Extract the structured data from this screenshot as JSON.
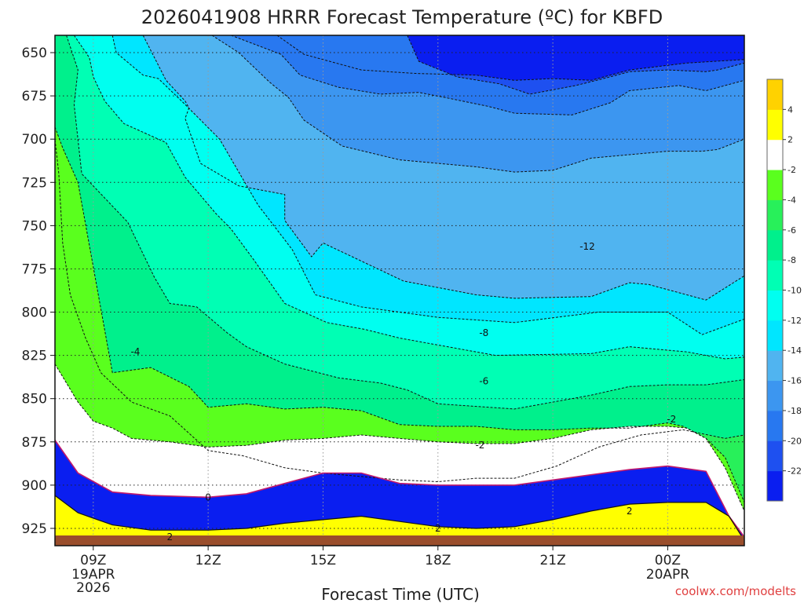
{
  "chart_data": {
    "type": "heatmap",
    "title": "2026041908 HRRR Forecast Temperature (ºC) for KBFD",
    "xlabel": "Forecast Time (UTC)",
    "ylabel": "",
    "x_ticks": [
      {
        "label": "09Z",
        "sub": [
          "19APR",
          "2026"
        ],
        "hour": 9
      },
      {
        "label": "12Z",
        "sub": [],
        "hour": 12
      },
      {
        "label": "15Z",
        "sub": [],
        "hour": 15
      },
      {
        "label": "18Z",
        "sub": [],
        "hour": 18
      },
      {
        "label": "21Z",
        "sub": [],
        "hour": 21
      },
      {
        "label": "00Z",
        "sub": [
          "20APR"
        ],
        "hour": 24
      }
    ],
    "xlim_hours": [
      8,
      26
    ],
    "y_ticks": [
      650,
      675,
      700,
      725,
      750,
      775,
      800,
      825,
      850,
      875,
      900,
      925
    ],
    "ylim_hpa": [
      640,
      935
    ],
    "y_axis_inverted": true,
    "grid": true,
    "colorbar": {
      "levels": [
        -24,
        -22,
        -20,
        -18,
        -16,
        -14,
        -12,
        -10,
        -8,
        -6,
        -4,
        -2,
        2,
        4,
        6
      ],
      "tick_labels": [
        "-22",
        "-20",
        "-18",
        "-16",
        "-14",
        "-12",
        "-10",
        "-8",
        "-6",
        "-4",
        "-2",
        "2",
        "4"
      ],
      "colors": [
        "#0a1ef0",
        "#1e50f0",
        "#2878f0",
        "#3c96f0",
        "#50b4f0",
        "#00e6ff",
        "#00fff0",
        "#00ffb4",
        "#00f08c",
        "#28f05a",
        "#5aff1e",
        "#ffffff",
        "#ffff00",
        "#ffd200"
      ]
    },
    "contour_labels": [
      {
        "text": "-12",
        "hour": 21.9,
        "hpa": 762
      },
      {
        "text": "-8",
        "hour": 19.2,
        "hpa": 812
      },
      {
        "text": "-6",
        "hour": 19.2,
        "hpa": 840
      },
      {
        "text": "-4",
        "hour": 10.1,
        "hpa": 823
      },
      {
        "text": "-2",
        "hour": 19.1,
        "hpa": 877
      },
      {
        "text": "-2",
        "hour": 24.1,
        "hpa": 862
      },
      {
        "text": "0",
        "hour": 12.0,
        "hpa": 907
      },
      {
        "text": "2",
        "hour": 11.0,
        "hpa": 930
      },
      {
        "text": "2",
        "hour": 18.0,
        "hpa": 925
      },
      {
        "text": "2",
        "hour": 23.0,
        "hpa": 915
      }
    ],
    "series": [
      {
        "level": -22,
        "hour": [
          13.8,
          14.5,
          16,
          17.4,
          19,
          20,
          21,
          22,
          23,
          24.5,
          26
        ],
        "hpa": [
          640,
          651,
          660,
          662,
          663,
          666,
          665,
          666,
          660,
          656,
          654
        ]
      },
      {
        "level": -20,
        "hour": [
          17.2,
          17.5,
          18.5,
          19.6,
          20.4,
          21.6,
          22.5,
          23,
          24,
          25,
          25.3,
          26
        ],
        "hpa": [
          640,
          655,
          664,
          668,
          674,
          669,
          664,
          661,
          660,
          661,
          660,
          656
        ]
      },
      {
        "level": -18,
        "hour": [
          12.6,
          13.9,
          14.4,
          15.4,
          16.5,
          17.5,
          18.2,
          19.3,
          20,
          21.5,
          22.5,
          23,
          24.3,
          25,
          26
        ],
        "hpa": [
          640,
          651,
          663,
          670,
          674,
          673,
          676,
          681,
          685,
          686,
          679,
          672,
          669,
          672,
          666
        ]
      },
      {
        "level": -16,
        "hour": [
          12.1,
          12.8,
          13.6,
          14.1,
          14.5,
          15.5,
          17,
          19,
          20,
          21,
          22,
          23,
          24,
          24.9,
          25.3,
          26
        ],
        "hpa": [
          640,
          650,
          667,
          676,
          689,
          704,
          712,
          716,
          719,
          718,
          711,
          709,
          707,
          707,
          706,
          700
        ]
      },
      {
        "level": -14,
        "hour": [
          10.3,
          10.9,
          11.4,
          11.5,
          11.4,
          11.8,
          12.8,
          14,
          14,
          14.7,
          15,
          17.1,
          19,
          20,
          22,
          23,
          23.5,
          25,
          26
        ],
        "hpa": [
          640,
          666,
          678,
          682,
          688,
          714,
          727,
          732,
          747,
          768,
          760,
          782,
          790,
          792,
          791,
          783,
          784,
          793,
          779
        ]
      },
      {
        "level": -12,
        "hour": [
          9.5,
          9.6,
          10.3,
          10.7,
          11.4,
          12.3,
          13.3,
          14.2,
          14.8,
          16,
          18,
          20,
          22.2,
          24,
          24.9,
          26
        ],
        "hpa": [
          640,
          650,
          663,
          665,
          680,
          700,
          738,
          764,
          790,
          797,
          803,
          806,
          800,
          800,
          813,
          804
        ]
      },
      {
        "level": -10,
        "hour": [
          8.5,
          8.9,
          9,
          9.3,
          9.8,
          10.9,
          11.4,
          12.2,
          12.6,
          13.2,
          14,
          15.1,
          16.1,
          17,
          18.5,
          19.5,
          22,
          23,
          24.5,
          25.5,
          26
        ],
        "hpa": [
          640,
          653,
          664,
          678,
          691,
          702,
          722,
          743,
          752,
          770,
          795,
          806,
          810,
          815,
          821,
          825,
          824,
          820,
          823,
          827,
          826
        ]
      },
      {
        "level": -8,
        "hour": [
          8.3,
          8.6,
          8.5,
          8.7,
          9.9,
          10.6,
          11,
          11.7,
          12.5,
          13,
          14,
          15.4,
          16.5,
          17.2,
          18,
          20,
          22,
          23,
          24,
          25,
          26
        ],
        "hpa": [
          640,
          660,
          680,
          720,
          748,
          780,
          795,
          797,
          812,
          820,
          830,
          838,
          841,
          845,
          853,
          856,
          848,
          843,
          842,
          842,
          839
        ]
      },
      {
        "level": -6,
        "hour": [
          8,
          8,
          8.1,
          8.2,
          8.4,
          8.8,
          9.2,
          10,
          10.5,
          11,
          11.5,
          12,
          12.9,
          14,
          15,
          16,
          17,
          18,
          19,
          20,
          21.1,
          22.2,
          23.3,
          24.4,
          25.5,
          26
        ],
        "hpa": [
          680,
          700,
          720,
          760,
          790,
          815,
          835,
          852,
          856,
          860,
          870,
          880,
          883,
          890,
          893,
          895,
          897,
          898,
          896,
          896,
          889,
          878,
          871,
          868,
          873,
          871
        ]
      },
      {
        "level": -4,
        "hour": [
          8,
          8.2,
          8.6,
          9.5,
          10.5,
          11.5,
          12,
          13,
          14,
          15,
          16,
          17,
          18,
          19,
          20,
          21,
          22,
          23,
          24,
          24.4,
          25,
          25.5,
          26
        ],
        "hpa": [
          693,
          705,
          725,
          835,
          832,
          843,
          855,
          853,
          856,
          855,
          857,
          865,
          866,
          866,
          868,
          868,
          867,
          867,
          864,
          866,
          873,
          884,
          910
        ]
      },
      {
        "level": -2,
        "hour": [
          8,
          8.6,
          9,
          9.5,
          10,
          11,
          12,
          13,
          14,
          15,
          16,
          17,
          18,
          19,
          20,
          21,
          22,
          23,
          24,
          24.5,
          25,
          25.5,
          26
        ],
        "hpa": [
          830,
          852,
          863,
          867,
          873,
          875,
          878,
          877,
          874,
          873,
          871,
          873,
          875,
          876,
          876,
          873,
          868,
          866,
          866,
          867,
          873,
          890,
          915
        ]
      },
      {
        "level": 0,
        "hour": [
          8,
          8.6,
          9.5,
          10.5,
          12,
          13,
          14,
          15,
          16,
          17,
          18,
          19,
          20,
          21,
          22,
          23,
          24,
          25,
          25.6,
          26
        ],
        "hpa": [
          874,
          893,
          904,
          906,
          907,
          905,
          899,
          893,
          893,
          899,
          900,
          900,
          900,
          897,
          894,
          891,
          889,
          892,
          918,
          930
        ]
      },
      {
        "level": 2,
        "hour": [
          8,
          8.6,
          9.5,
          10.5,
          12,
          13,
          14,
          15,
          16,
          17,
          18,
          19,
          20,
          21,
          22,
          23,
          24,
          25,
          25.6,
          26
        ],
        "hpa": [
          906,
          916,
          923,
          926,
          926,
          925,
          922,
          920,
          918,
          921,
          924,
          925,
          924,
          920,
          915,
          911,
          910,
          910,
          918,
          932
        ]
      },
      {
        "level": 4,
        "hour": [
          8,
          8.8,
          9.5,
          12,
          15,
          16,
          17,
          18,
          19,
          20,
          22,
          23,
          24,
          25,
          25.6,
          26
        ],
        "hpa": [
          931,
          934,
          935,
          935,
          934,
          933,
          934,
          935,
          935,
          935,
          935,
          935,
          935,
          935,
          935,
          935
        ]
      }
    ]
  },
  "credit": "coolwx.com/modelts"
}
